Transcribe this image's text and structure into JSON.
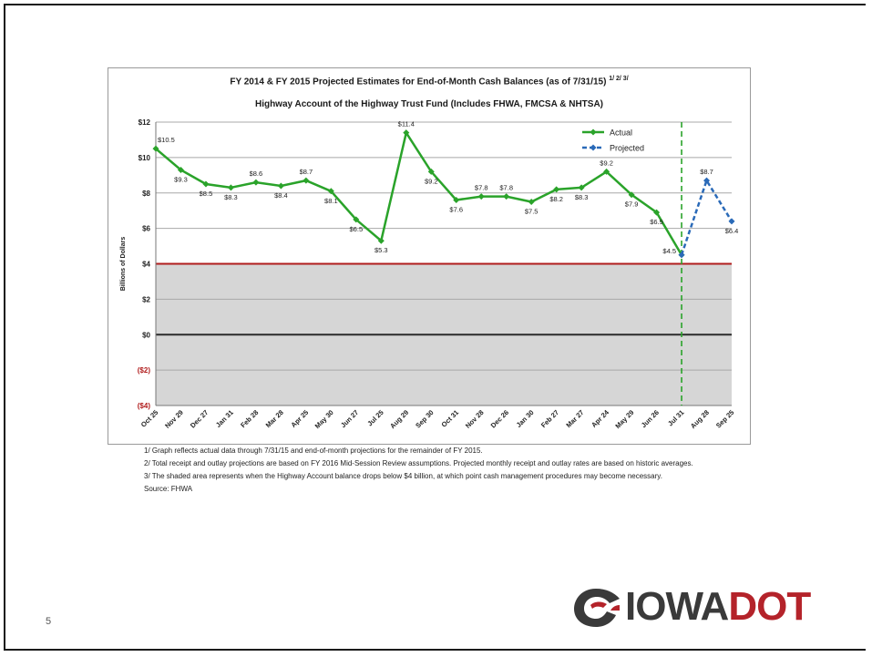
{
  "slide": {
    "page_number": "5"
  },
  "chart_data": {
    "type": "line",
    "title": "FY 2014 & FY 2015 Projected Estimates for End-of-Month Cash Balances (as of 7/31/15)",
    "title_superscript": "1/ 2/ 3/",
    "subtitle": "Highway Account of the Highway Trust Fund (Includes FHWA, FMCSA & NHTSA)",
    "ylabel": "Billions of Dollars",
    "ylim": [
      -4,
      12
    ],
    "yticks": [
      {
        "value": 12,
        "label": "$12"
      },
      {
        "value": 10,
        "label": "$10"
      },
      {
        "value": 8,
        "label": "$8"
      },
      {
        "value": 6,
        "label": "$6"
      },
      {
        "value": 4,
        "label": "$4"
      },
      {
        "value": 2,
        "label": "$2"
      },
      {
        "value": 0,
        "label": "$0"
      },
      {
        "value": -2,
        "label": "($2)"
      },
      {
        "value": -4,
        "label": "($4)"
      }
    ],
    "grid": true,
    "legend_position": "top-right",
    "threshold": {
      "value": 4,
      "color": "#b01c1c",
      "shaded_below": true,
      "shade_color": "#d6d6d6"
    },
    "zero_line_color": "#2a2a2a",
    "divider_category": "Jul 31",
    "categories": [
      "Oct 25",
      "Nov 29",
      "Dec 27",
      "Jan 31",
      "Feb 28",
      "Mar 28",
      "Apr 25",
      "May 30",
      "Jun 27",
      "Jul 25",
      "Aug 29",
      "Sep 30",
      "Oct 31",
      "Nov 28",
      "Dec 26",
      "Jan 30",
      "Feb 27",
      "Mar 27",
      "Apr 24",
      "May 29",
      "Jun 26",
      "Jul 31",
      "Aug 28",
      "Sep 25"
    ],
    "series": [
      {
        "name": "Actual",
        "color": "#2aa32a",
        "style": "solid",
        "values": [
          10.5,
          9.3,
          8.5,
          8.3,
          8.6,
          8.4,
          8.7,
          8.1,
          6.5,
          5.3,
          11.4,
          9.2,
          7.6,
          7.8,
          7.8,
          7.5,
          8.2,
          8.3,
          9.2,
          7.9,
          6.9,
          4.5,
          null,
          null
        ],
        "labels": [
          "$10.5",
          "$9.3",
          "$8.5",
          "$8.3",
          "$8.6",
          "$8.4",
          "$8.7",
          "$8.1",
          "$6.5",
          "$5.3",
          "$11.4",
          "$9.2",
          "$7.6",
          "$7.8",
          "$7.8",
          "$7.5",
          "$8.2",
          "$8.3",
          "$9.2",
          "$7.9",
          "$6.9",
          "$4.5",
          null,
          null
        ]
      },
      {
        "name": "Projected",
        "color": "#2a6ab8",
        "style": "dashed",
        "values": [
          null,
          null,
          null,
          null,
          null,
          null,
          null,
          null,
          null,
          null,
          null,
          null,
          null,
          null,
          null,
          null,
          null,
          null,
          null,
          null,
          null,
          4.5,
          8.7,
          6.4
        ],
        "labels": [
          null,
          null,
          null,
          null,
          null,
          null,
          null,
          null,
          null,
          null,
          null,
          null,
          null,
          null,
          null,
          null,
          null,
          null,
          null,
          null,
          null,
          null,
          "$8.7",
          "$6.4"
        ]
      }
    ]
  },
  "footnotes": {
    "note1": "1/ Graph reflects actual data through 7/31/15 and end-of-month projections for the remainder of FY 2015.",
    "note2": "2/ Total receipt and outlay projections are based on FY 2016 Mid-Session Review assumptions.  Projected monthly receipt and outlay rates are based on historic averages.",
    "note3": "3/ The shaded area represents when the Highway Account balance drops below $4 billion, at which point cash management procedures may become necessary.",
    "source": "Source: FHWA"
  },
  "logo": {
    "text_iowa": "IOWA",
    "text_dot": "DOT",
    "brand_red": "#b4232a",
    "brand_gray": "#3a3a3a"
  }
}
